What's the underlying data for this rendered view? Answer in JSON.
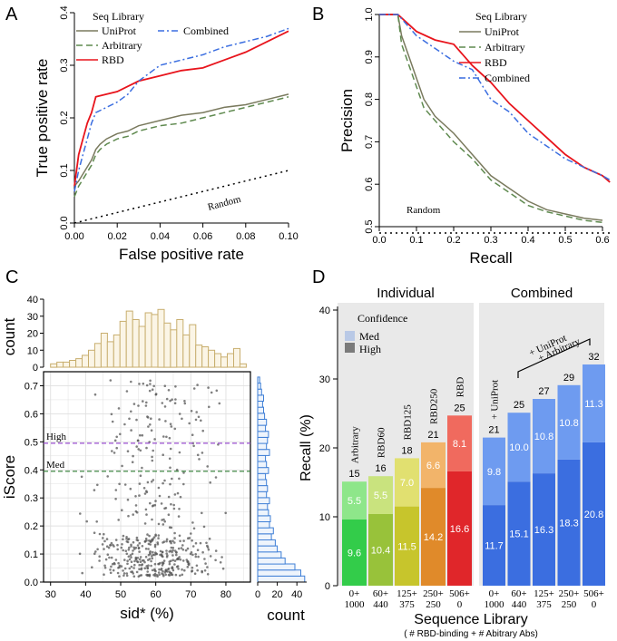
{
  "panels": {
    "A": {
      "letter": "A"
    },
    "B": {
      "letter": "B"
    },
    "C": {
      "letter": "C"
    },
    "D": {
      "letter": "D"
    }
  },
  "colors": {
    "uniprot": "#7a7a5e",
    "arbitrary": "#5f8a4f",
    "rbd": "#e8141c",
    "combined": "#3b6ee0",
    "hist_top": "#c8ae6e",
    "hist_right": "#3f7fd6",
    "high_line": "#9a4fd0",
    "med_line": "#2e7d32"
  },
  "chart_data": [
    {
      "panel": "A",
      "type": "line",
      "xlabel": "False positive rate",
      "ylabel": "True positive rate",
      "xlim": [
        0,
        0.1
      ],
      "ylim": [
        0,
        0.4
      ],
      "xticks": [
        "0.00",
        "0.02",
        "0.04",
        "0.06",
        "0.08",
        "0.10"
      ],
      "yticks": [
        "0.0",
        "0.1",
        "0.2",
        "0.3",
        "0.4"
      ],
      "legend_title": "Seq Library",
      "series": [
        {
          "name": "UniProt",
          "style": "solid",
          "x": [
            0,
            0.002,
            0.005,
            0.008,
            0.01,
            0.012,
            0.015,
            0.02,
            0.025,
            0.03,
            0.04,
            0.05,
            0.06,
            0.07,
            0.08,
            0.09,
            0.1
          ],
          "y": [
            0.07,
            0.08,
            0.1,
            0.12,
            0.14,
            0.15,
            0.16,
            0.17,
            0.175,
            0.185,
            0.195,
            0.205,
            0.21,
            0.22,
            0.225,
            0.235,
            0.245
          ]
        },
        {
          "name": "Arbitrary",
          "style": "dashed",
          "x": [
            0,
            0.002,
            0.005,
            0.008,
            0.01,
            0.012,
            0.015,
            0.02,
            0.025,
            0.03,
            0.04,
            0.05,
            0.06,
            0.07,
            0.08,
            0.09,
            0.1
          ],
          "y": [
            0.05,
            0.07,
            0.09,
            0.11,
            0.13,
            0.14,
            0.15,
            0.16,
            0.165,
            0.175,
            0.185,
            0.19,
            0.2,
            0.21,
            0.22,
            0.23,
            0.24
          ]
        },
        {
          "name": "RBD",
          "style": "solid",
          "x": [
            0,
            0.002,
            0.004,
            0.006,
            0.008,
            0.01,
            0.015,
            0.02,
            0.025,
            0.03,
            0.04,
            0.05,
            0.06,
            0.07,
            0.08,
            0.09,
            0.1
          ],
          "y": [
            0.07,
            0.13,
            0.16,
            0.19,
            0.21,
            0.24,
            0.245,
            0.25,
            0.26,
            0.27,
            0.28,
            0.29,
            0.295,
            0.31,
            0.325,
            0.345,
            0.365
          ]
        },
        {
          "name": "Combined",
          "style": "dotdash",
          "x": [
            0,
            0.002,
            0.004,
            0.006,
            0.008,
            0.01,
            0.015,
            0.02,
            0.025,
            0.03,
            0.04,
            0.05,
            0.06,
            0.07,
            0.08,
            0.09,
            0.1
          ],
          "y": [
            0.06,
            0.1,
            0.13,
            0.16,
            0.19,
            0.21,
            0.22,
            0.23,
            0.245,
            0.27,
            0.3,
            0.31,
            0.32,
            0.335,
            0.345,
            0.355,
            0.37
          ]
        },
        {
          "name": "Random",
          "style": "dotted",
          "x": [
            0,
            0.1
          ],
          "y": [
            0,
            0.1
          ]
        }
      ],
      "annotation": "Random"
    },
    {
      "panel": "B",
      "type": "line",
      "xlabel": "Recall",
      "ylabel": "Precision",
      "xlim": [
        0,
        0.6
      ],
      "ylim": [
        0.5,
        1.0
      ],
      "xticks": [
        "0.0",
        "0.1",
        "0.2",
        "0.3",
        "0.4",
        "0.5",
        "0.6"
      ],
      "yticks": [
        "0.5",
        "0.6",
        "0.7",
        "0.8",
        "0.9",
        "1.0"
      ],
      "legend_title": "Seq Library",
      "series": [
        {
          "name": "UniProt",
          "style": "solid",
          "x": [
            0,
            0.05,
            0.06,
            0.08,
            0.1,
            0.12,
            0.15,
            0.2,
            0.25,
            0.3,
            0.35,
            0.4,
            0.45,
            0.5,
            0.55,
            0.6
          ],
          "y": [
            1.0,
            1.0,
            0.95,
            0.9,
            0.85,
            0.8,
            0.76,
            0.72,
            0.67,
            0.62,
            0.59,
            0.56,
            0.54,
            0.53,
            0.52,
            0.515
          ]
        },
        {
          "name": "Arbitrary",
          "style": "dashed",
          "x": [
            0,
            0.05,
            0.06,
            0.08,
            0.1,
            0.12,
            0.15,
            0.2,
            0.25,
            0.3,
            0.35,
            0.4,
            0.45,
            0.5,
            0.55,
            0.6
          ],
          "y": [
            1.0,
            1.0,
            0.93,
            0.88,
            0.83,
            0.78,
            0.75,
            0.7,
            0.66,
            0.61,
            0.58,
            0.55,
            0.535,
            0.525,
            0.515,
            0.51
          ]
        },
        {
          "name": "RBD",
          "style": "solid",
          "x": [
            0,
            0.05,
            0.1,
            0.15,
            0.2,
            0.25,
            0.3,
            0.35,
            0.4,
            0.45,
            0.5,
            0.55,
            0.6,
            0.62
          ],
          "y": [
            1.0,
            1.0,
            0.96,
            0.94,
            0.93,
            0.88,
            0.84,
            0.79,
            0.75,
            0.71,
            0.67,
            0.64,
            0.62,
            0.605
          ]
        },
        {
          "name": "Combined",
          "style": "dotdash",
          "x": [
            0,
            0.05,
            0.1,
            0.15,
            0.2,
            0.25,
            0.3,
            0.35,
            0.4,
            0.45,
            0.5,
            0.55,
            0.6,
            0.62
          ],
          "y": [
            1.0,
            1.0,
            0.95,
            0.92,
            0.89,
            0.87,
            0.8,
            0.77,
            0.72,
            0.69,
            0.66,
            0.64,
            0.62,
            0.61
          ]
        },
        {
          "name": "Random",
          "style": "dotted",
          "x": [
            0,
            0.62
          ],
          "y": [
            0.485,
            0.485
          ]
        }
      ],
      "annotation": "Random"
    },
    {
      "panel": "C",
      "type": "scatter",
      "xlabel": "sid* (%)",
      "ylabel": "iScore",
      "xlim": [
        28,
        87
      ],
      "ylim": [
        0,
        0.75
      ],
      "xticks": [
        "30",
        "40",
        "50",
        "60",
        "70",
        "80"
      ],
      "yticks": [
        "0.0",
        "0.1",
        "0.2",
        "0.3",
        "0.4",
        "0.5",
        "0.6",
        "0.7"
      ],
      "thresholds": [
        {
          "label": "High",
          "value": 0.495
        },
        {
          "label": "Med",
          "value": 0.395
        }
      ],
      "top_hist": {
        "ylabel": "count",
        "yticks": [
          "0",
          "10",
          "20",
          "30",
          "40"
        ],
        "bin_start": 30,
        "bin_width": 1.8,
        "counts": [
          2,
          3,
          3,
          4,
          5,
          7,
          10,
          14,
          20,
          15,
          19,
          27,
          33,
          28,
          24,
          32,
          31,
          34,
          26,
          22,
          28,
          19,
          25,
          13,
          12,
          10,
          8,
          6,
          8,
          11,
          2
        ]
      },
      "right_hist": {
        "xlabel": "count",
        "xticks": [
          "0",
          "20",
          "40"
        ],
        "bin_start": 0.0,
        "bin_width": 0.0215,
        "counts": [
          48,
          44,
          38,
          28,
          24,
          20,
          18,
          14,
          16,
          12,
          13,
          11,
          10,
          12,
          9,
          10,
          9,
          8,
          11,
          9,
          8,
          12,
          9,
          10,
          11,
          8,
          9,
          7,
          6,
          5,
          6,
          4,
          3,
          2
        ]
      }
    },
    {
      "panel": "D",
      "type": "bar",
      "xlabel": "Sequence Library",
      "xsublabel": "( # RBD-binding + # Abitrary Abs)",
      "ylabel": "Recall  (%)",
      "ylim": [
        0,
        40
      ],
      "yticks": [
        "0",
        "10",
        "20",
        "30",
        "40"
      ],
      "group_labels": [
        "Individual",
        "Combined"
      ],
      "legend_title": "Confidence",
      "legend_items": [
        "Med",
        "High"
      ],
      "bracket_label": "+ UniProt\n+ Arbitrary",
      "individual": [
        {
          "name": "Arbitrary",
          "tick": "0+\n1000",
          "high": 9.6,
          "med": 5.5,
          "total": 15,
          "color_high": "#33cc4a",
          "color_med": "#8ee68a"
        },
        {
          "name": "RBD60",
          "tick": "60+\n440",
          "high": 10.4,
          "med": 5.5,
          "total": 16,
          "color_high": "#98c23a",
          "color_med": "#c9e37e"
        },
        {
          "name": "RBD125",
          "tick": "125+\n375",
          "high": 11.5,
          "med": 7.0,
          "total": 18,
          "color_high": "#c7c52c",
          "color_med": "#e1e070"
        },
        {
          "name": "RBD250",
          "tick": "250+\n250",
          "high": 14.2,
          "med": 6.6,
          "total": 21,
          "color_high": "#e08a2a",
          "color_med": "#f2b46a"
        },
        {
          "name": "RBD",
          "tick": "506+\n0",
          "high": 16.6,
          "med": 8.1,
          "total": 25,
          "color_high": "#e0262a",
          "color_med": "#f06a5e"
        }
      ],
      "combined": [
        {
          "name": "+ UniProt",
          "tick": "0+\n1000",
          "high": 11.7,
          "med": 9.8,
          "total": 21
        },
        {
          "name": "",
          "tick": "60+\n440",
          "high": 15.1,
          "med": 10.0,
          "total": 25
        },
        {
          "name": "",
          "tick": "125+\n375",
          "high": 16.3,
          "med": 10.8,
          "total": 27
        },
        {
          "name": "",
          "tick": "250+\n250",
          "high": 18.3,
          "med": 10.8,
          "total": 29
        },
        {
          "name": "",
          "tick": "506+\n0",
          "high": 20.8,
          "med": 11.3,
          "total": 32
        }
      ]
    }
  ]
}
